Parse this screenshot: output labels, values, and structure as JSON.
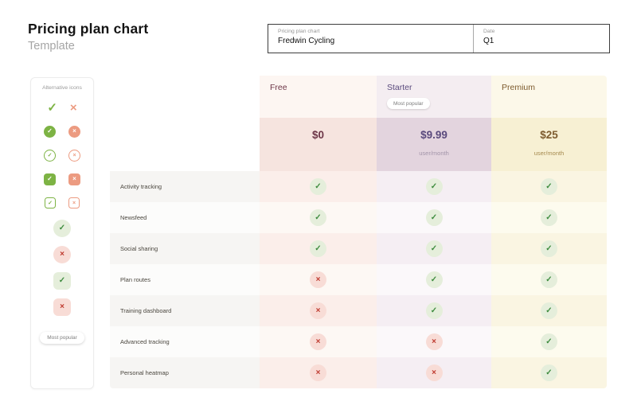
{
  "page": {
    "title": "Pricing plan chart",
    "subtitle": "Template"
  },
  "meta": {
    "fields": [
      {
        "label": "Pricing plan chart",
        "value": "Fredwin Cycling"
      },
      {
        "label": "Date",
        "value": "Q1"
      }
    ]
  },
  "sidebar": {
    "title": "Alternative icons",
    "pair_styles": [
      "plain",
      "filled-circle",
      "outline-circle",
      "filled-square",
      "outline-square"
    ],
    "singles": [
      {
        "shape": "circle",
        "kind": "check"
      },
      {
        "shape": "circle",
        "kind": "cross"
      },
      {
        "shape": "square",
        "kind": "check"
      },
      {
        "shape": "square",
        "kind": "cross"
      }
    ],
    "badge_label": "Most popular"
  },
  "icons": {
    "check_glyph": "✓",
    "cross_glyph": "×"
  },
  "colors": {
    "green": "#7db344",
    "salmon": "#ec9b81",
    "soft_check_bg": "#e5eedb",
    "soft_check_fg": "#3f8c3f",
    "soft_cross_bg": "#f8dcd6",
    "soft_cross_fg": "#bf3a2f"
  },
  "pricing_table": {
    "label_column": {
      "row_odd_bg": "#f6f5f3",
      "row_even_bg": "#fcfcfb"
    },
    "plans": [
      {
        "name": "Free",
        "price": "$0",
        "per": "",
        "badge": "",
        "theme": {
          "name_color": "#6d3648",
          "header_bg": "#fdf6f2",
          "price_bg": "#f6e4df",
          "row_odd_bg": "#fbeeea",
          "row_even_bg": "#fdf8f4",
          "per_color": "#b08f9a"
        }
      },
      {
        "name": "Starter",
        "price": "$9.99",
        "per": "user/month",
        "badge": "Most popular",
        "theme": {
          "name_color": "#5a4a7d",
          "header_bg": "#f4edf1",
          "price_bg": "#e3d4de",
          "row_odd_bg": "#f5eef3",
          "row_even_bg": "#fbf8fa",
          "per_color": "#a294a9"
        }
      },
      {
        "name": "Premium",
        "price": "$25",
        "per": "user/month",
        "badge": "",
        "theme": {
          "name_color": "#7d5b2e",
          "header_bg": "#fcf8e9",
          "price_bg": "#f7f0d3",
          "row_odd_bg": "#faf5e2",
          "row_even_bg": "#fdfbee",
          "per_color": "#a5894d"
        }
      }
    ],
    "features": [
      {
        "label": "Activity tracking",
        "availability": [
          true,
          true,
          true
        ]
      },
      {
        "label": "Newsfeed",
        "availability": [
          true,
          true,
          true
        ]
      },
      {
        "label": "Social sharing",
        "availability": [
          true,
          true,
          true
        ]
      },
      {
        "label": "Plan routes",
        "availability": [
          false,
          true,
          true
        ]
      },
      {
        "label": "Training dashboard",
        "availability": [
          false,
          true,
          true
        ]
      },
      {
        "label": "Advanced tracking",
        "availability": [
          false,
          false,
          true
        ]
      },
      {
        "label": "Personal heatmap",
        "availability": [
          false,
          false,
          true
        ]
      }
    ]
  }
}
